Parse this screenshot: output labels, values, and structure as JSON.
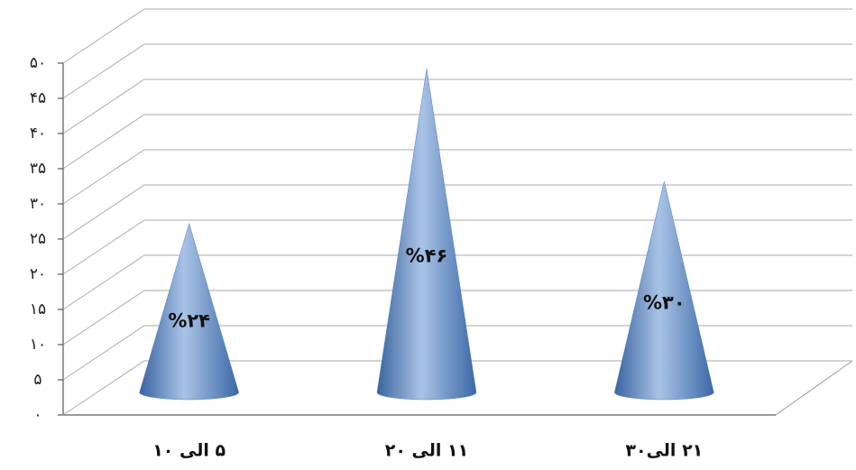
{
  "chart_data": {
    "type": "cone",
    "categories": [
      "۵ الی ۱۰",
      "۱۱ الی ۲۰",
      "۲۱ الی۳۰"
    ],
    "values": [
      24,
      46,
      30
    ],
    "value_labels": [
      "%۲۴",
      "%۴۶",
      "%۳۰"
    ],
    "color": "#4f7fc0",
    "ylim": [
      0,
      50
    ],
    "yticks": [
      {
        "value": 0,
        "label": "۰"
      },
      {
        "value": 5,
        "label": "۵"
      },
      {
        "value": 10,
        "label": "۱۰"
      },
      {
        "value": 15,
        "label": "۱۵"
      },
      {
        "value": 20,
        "label": "۲۰"
      },
      {
        "value": 25,
        "label": "۲۵"
      },
      {
        "value": 30,
        "label": "۳۰"
      },
      {
        "value": 35,
        "label": "۳۵"
      },
      {
        "value": 40,
        "label": "۴۰"
      },
      {
        "value": 45,
        "label": "۴۵"
      },
      {
        "value": 50,
        "label": "۵۰"
      }
    ],
    "grid": true
  }
}
